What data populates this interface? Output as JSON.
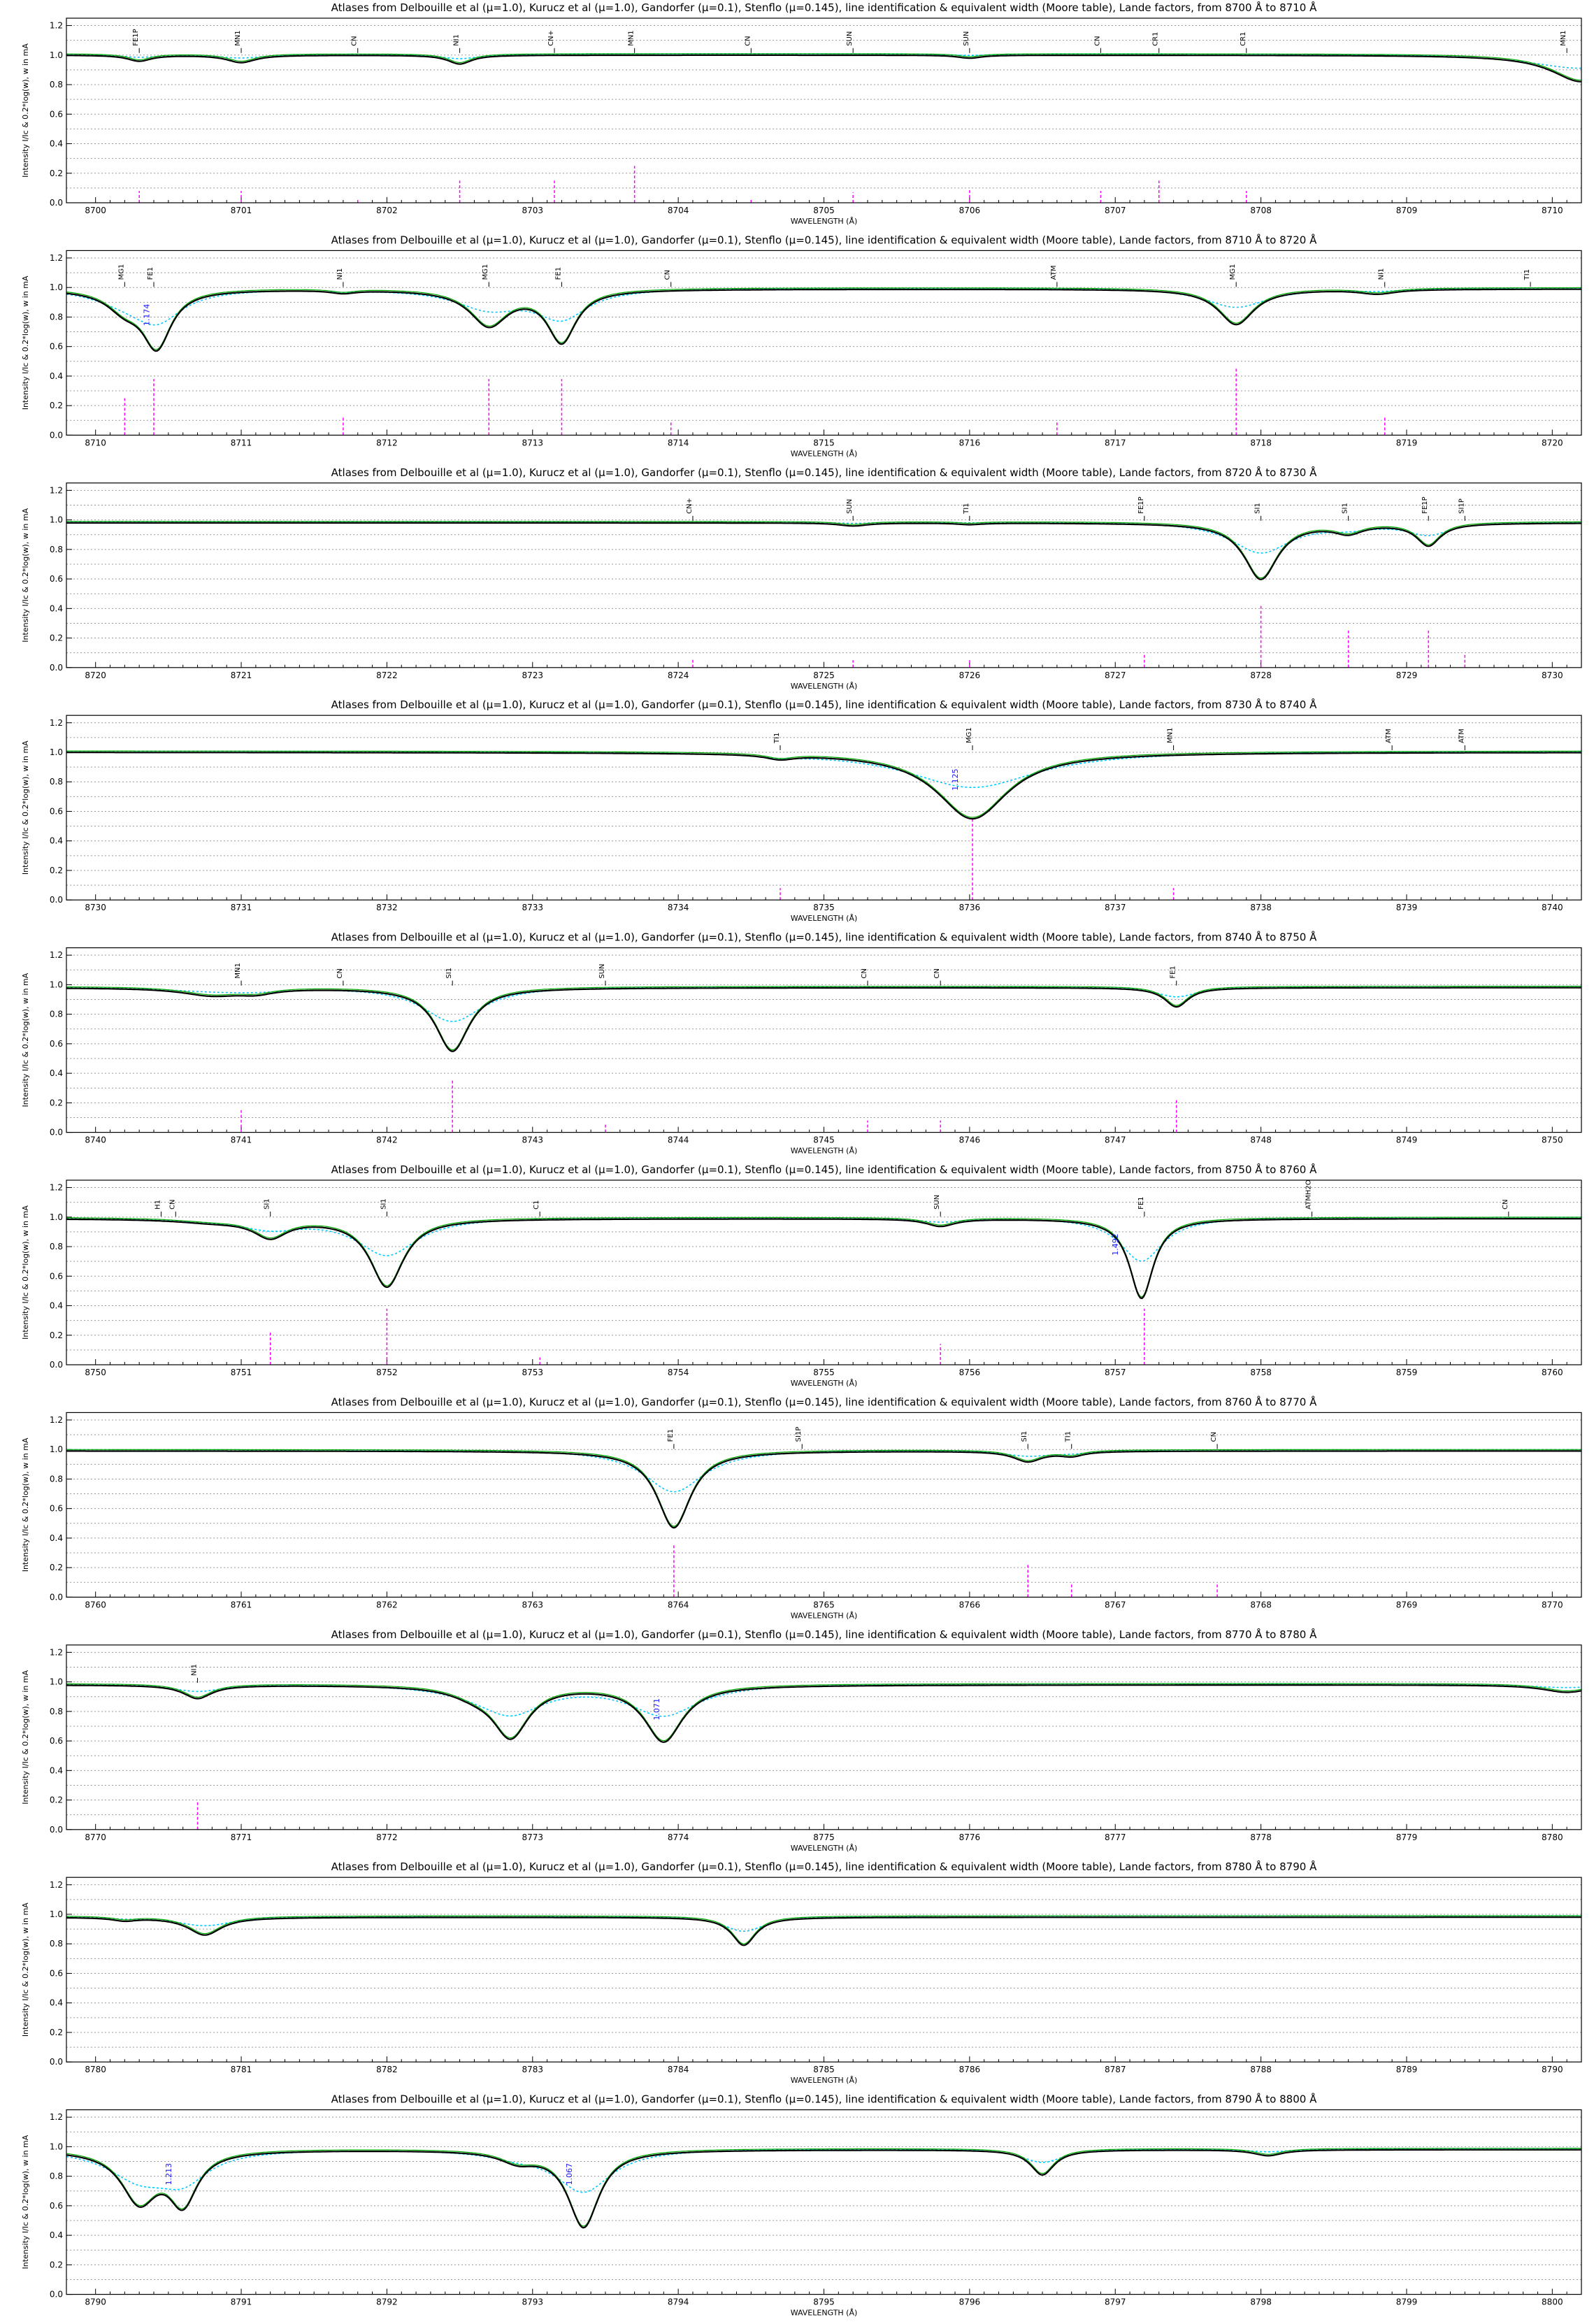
{
  "title_template": "Atlases from Delbouille et al (μ=1.0), Kurucz et al (μ=1.0), Gandorfer (μ=0.1), Stenflo (μ=0.145), line identification & equivalent width (Moore table), Lande factors, from {a} Å to {b} Å",
  "ylabel": "Intensity I/Ic & 0.2*log(w), w in mA",
  "xlabel": "WAVELENGTH (Å)",
  "colors": {
    "delbouille": "#000000",
    "kurucz": "#00aa00",
    "gandorfer": "#00c8ff",
    "stenflo": "#00c8ff",
    "moore_w": "#ff00ff",
    "lande": "#1a1aff",
    "grid": "#999999"
  },
  "chart_data": [
    {
      "type": "line",
      "title": "Atlases from Delbouille et al (μ=1.0), Kurucz et al (μ=1.0), Gandorfer (μ=0.1), Stenflo (μ=0.145), line identification & equivalent width (Moore table), Lande factors, from 8700 Å to 8710 Å",
      "xlim": [
        8699.8,
        8710.2
      ],
      "ylim": [
        0,
        1.25
      ],
      "yticks": [
        0.0,
        0.2,
        0.4,
        0.6,
        0.8,
        1.0,
        1.2
      ],
      "xticks": [
        8700,
        8701,
        8702,
        8703,
        8704,
        8705,
        8706,
        8707,
        8708,
        8709,
        8710
      ],
      "cont": 1.0,
      "lines": [
        {
          "x": 8700.3,
          "d": 0.04,
          "w": 0.1
        },
        {
          "x": 8701.0,
          "d": 0.05,
          "w": 0.12
        },
        {
          "x": 8702.5,
          "d": 0.06,
          "w": 0.1
        },
        {
          "x": 8706.0,
          "d": 0.02,
          "w": 0.1
        },
        {
          "x": 8710.2,
          "d": 0.18,
          "w": 0.25
        }
      ],
      "ids": [
        {
          "x": 8700.3,
          "t": "FE1P"
        },
        {
          "x": 8701.0,
          "t": "MN1"
        },
        {
          "x": 8701.8,
          "t": "CN"
        },
        {
          "x": 8702.5,
          "t": "NI1"
        },
        {
          "x": 8703.15,
          "t": "CN+"
        },
        {
          "x": 8703.7,
          "t": "MN1"
        },
        {
          "x": 8704.5,
          "t": "CN"
        },
        {
          "x": 8705.2,
          "t": "SUN"
        },
        {
          "x": 8706.0,
          "t": "SUN"
        },
        {
          "x": 8706.9,
          "t": "CN"
        },
        {
          "x": 8707.3,
          "t": "CR1"
        },
        {
          "x": 8707.9,
          "t": "CR1"
        },
        {
          "x": 8710.1,
          "t": "MN1"
        }
      ],
      "w": [
        {
          "x": 8700.3,
          "h": 0.08
        },
        {
          "x": 8701.0,
          "h": 0.08
        },
        {
          "x": 8701.8,
          "h": 0.02
        },
        {
          "x": 8702.5,
          "h": 0.15
        },
        {
          "x": 8703.15,
          "h": 0.15
        },
        {
          "x": 8703.7,
          "h": 0.25
        },
        {
          "x": 8704.5,
          "h": 0.02
        },
        {
          "x": 8705.2,
          "h": 0.07
        },
        {
          "x": 8706.0,
          "h": 0.1
        },
        {
          "x": 8706.9,
          "h": 0.08
        },
        {
          "x": 8707.3,
          "h": 0.15
        },
        {
          "x": 8707.9,
          "h": 0.08
        }
      ],
      "lande": []
    },
    {
      "type": "line",
      "title": "Atlases from Delbouille et al (μ=1.0), Kurucz et al (μ=1.0), Gandorfer (μ=0.1), Stenflo (μ=0.145), line identification & equivalent width (Moore table), Lande factors, from 8710 Å to 8720 Å",
      "xlim": [
        8709.8,
        8720.2
      ],
      "ylim": [
        0,
        1.25
      ],
      "yticks": [
        0.0,
        0.2,
        0.4,
        0.6,
        0.8,
        1.0,
        1.2
      ],
      "xticks": [
        8710,
        8711,
        8712,
        8713,
        8714,
        8715,
        8716,
        8717,
        8718,
        8719,
        8720
      ],
      "cont": 0.99,
      "lines": [
        {
          "x": 8710.2,
          "d": 0.12,
          "w": 0.15
        },
        {
          "x": 8710.42,
          "d": 0.38,
          "w": 0.12
        },
        {
          "x": 8712.7,
          "d": 0.24,
          "w": 0.16
        },
        {
          "x": 8713.2,
          "d": 0.35,
          "w": 0.12
        },
        {
          "x": 8717.83,
          "d": 0.24,
          "w": 0.15
        },
        {
          "x": 8711.7,
          "d": 0.02,
          "w": 0.1
        },
        {
          "x": 8718.8,
          "d": 0.03,
          "w": 0.15
        }
      ],
      "ids": [
        {
          "x": 8710.2,
          "t": "MG1"
        },
        {
          "x": 8710.4,
          "t": "FE1"
        },
        {
          "x": 8711.7,
          "t": "NI1"
        },
        {
          "x": 8712.7,
          "t": "MG1"
        },
        {
          "x": 8713.2,
          "t": "FE1"
        },
        {
          "x": 8713.95,
          "t": "CN"
        },
        {
          "x": 8716.6,
          "t": "ATM"
        },
        {
          "x": 8717.83,
          "t": "MG1"
        },
        {
          "x": 8718.85,
          "t": "NI1"
        },
        {
          "x": 8719.85,
          "t": "TI1"
        }
      ],
      "w": [
        {
          "x": 8710.2,
          "h": 0.25
        },
        {
          "x": 8710.4,
          "h": 0.38
        },
        {
          "x": 8711.7,
          "h": 0.12
        },
        {
          "x": 8712.7,
          "h": 0.38
        },
        {
          "x": 8713.2,
          "h": 0.38
        },
        {
          "x": 8713.95,
          "h": 0.1
        },
        {
          "x": 8716.6,
          "h": 0.1
        },
        {
          "x": 8717.83,
          "h": 0.45
        },
        {
          "x": 8718.85,
          "h": 0.12
        }
      ],
      "lande": [
        {
          "x": 8710.35,
          "t": "1.174"
        }
      ]
    },
    {
      "type": "line",
      "title": "Atlases from Delbouille et al (μ=1.0), Kurucz et al (μ=1.0), Gandorfer (μ=0.1), Stenflo (μ=0.145), line identification & equivalent width (Moore table), Lande factors, from 8720 Å to 8730 Å",
      "xlim": [
        8719.8,
        8730.2
      ],
      "ylim": [
        0,
        1.25
      ],
      "yticks": [
        0.0,
        0.2,
        0.4,
        0.6,
        0.8,
        1.0,
        1.2
      ],
      "xticks": [
        8720,
        8721,
        8722,
        8723,
        8724,
        8725,
        8726,
        8727,
        8728,
        8729,
        8730
      ],
      "cont": 0.98,
      "lines": [
        {
          "x": 8728.0,
          "d": 0.38,
          "w": 0.14
        },
        {
          "x": 8728.6,
          "d": 0.06,
          "w": 0.12
        },
        {
          "x": 8729.15,
          "d": 0.15,
          "w": 0.1
        },
        {
          "x": 8725.2,
          "d": 0.02,
          "w": 0.12
        },
        {
          "x": 8726.0,
          "d": 0.01,
          "w": 0.1
        }
      ],
      "ids": [
        {
          "x": 8724.1,
          "t": "CN+"
        },
        {
          "x": 8725.2,
          "t": "SUN"
        },
        {
          "x": 8726.0,
          "t": "TI1"
        },
        {
          "x": 8727.2,
          "t": "FE1P"
        },
        {
          "x": 8728.0,
          "t": "SI1"
        },
        {
          "x": 8728.6,
          "t": "SI1"
        },
        {
          "x": 8729.15,
          "t": "FE1P"
        },
        {
          "x": 8729.4,
          "t": "SI1P"
        }
      ],
      "w": [
        {
          "x": 8724.1,
          "h": 0.06
        },
        {
          "x": 8725.2,
          "h": 0.05
        },
        {
          "x": 8726.0,
          "h": 0.05
        },
        {
          "x": 8727.2,
          "h": 0.1
        },
        {
          "x": 8728.0,
          "h": 0.42
        },
        {
          "x": 8728.6,
          "h": 0.25
        },
        {
          "x": 8729.15,
          "h": 0.25
        },
        {
          "x": 8729.4,
          "h": 0.1
        }
      ],
      "lande": []
    },
    {
      "type": "line",
      "title": "Atlases from Delbouille et al (μ=1.0), Kurucz et al (μ=1.0), Gandorfer (μ=0.1), Stenflo (μ=0.145), line identification & equivalent width (Moore table), Lande factors, from 8730 Å to 8740 Å",
      "xlim": [
        8729.8,
        8740.2
      ],
      "ylim": [
        0,
        1.25
      ],
      "yticks": [
        0.0,
        0.2,
        0.4,
        0.6,
        0.8,
        1.0,
        1.2
      ],
      "xticks": [
        8730,
        8731,
        8732,
        8733,
        8734,
        8735,
        8736,
        8737,
        8738,
        8739,
        8740
      ],
      "cont": 1.0,
      "lines": [
        {
          "x": 8736.02,
          "d": 0.45,
          "w": 0.3
        },
        {
          "x": 8734.7,
          "d": 0.03,
          "w": 0.12
        }
      ],
      "ids": [
        {
          "x": 8734.7,
          "t": "TI1"
        },
        {
          "x": 8736.02,
          "t": "MG1"
        },
        {
          "x": 8737.4,
          "t": "MN1"
        },
        {
          "x": 8738.9,
          "t": "ATM"
        },
        {
          "x": 8739.4,
          "t": "ATM"
        }
      ],
      "w": [
        {
          "x": 8734.7,
          "h": 0.08
        },
        {
          "x": 8736.02,
          "h": 0.55
        },
        {
          "x": 8737.4,
          "h": 0.08
        }
      ],
      "lande": [
        {
          "x": 8735.9,
          "t": "1.125"
        }
      ]
    },
    {
      "type": "line",
      "title": "Atlases from Delbouille et al (μ=1.0), Kurucz et al (μ=1.0), Gandorfer (μ=0.1), Stenflo (μ=0.145), line identification & equivalent width (Moore table), Lande factors, from 8740 Å to 8750 Å",
      "xlim": [
        8739.8,
        8750.2
      ],
      "ylim": [
        0,
        1.25
      ],
      "yticks": [
        0.0,
        0.2,
        0.4,
        0.6,
        0.8,
        1.0,
        1.2
      ],
      "xticks": [
        8740,
        8741,
        8742,
        8743,
        8744,
        8745,
        8746,
        8747,
        8748,
        8749,
        8750
      ],
      "cont": 0.98,
      "lines": [
        {
          "x": 8742.45,
          "d": 0.43,
          "w": 0.14
        },
        {
          "x": 8747.42,
          "d": 0.13,
          "w": 0.1
        },
        {
          "x": 8740.8,
          "d": 0.05,
          "w": 0.25
        },
        {
          "x": 8741.1,
          "d": 0.03,
          "w": 0.15
        }
      ],
      "ids": [
        {
          "x": 8741.0,
          "t": "MN1"
        },
        {
          "x": 8741.7,
          "t": "CN"
        },
        {
          "x": 8742.45,
          "t": "SI1"
        },
        {
          "x": 8743.5,
          "t": "SUN"
        },
        {
          "x": 8745.3,
          "t": "CN"
        },
        {
          "x": 8745.8,
          "t": "CN"
        },
        {
          "x": 8747.42,
          "t": "FE1"
        }
      ],
      "w": [
        {
          "x": 8741.0,
          "h": 0.15
        },
        {
          "x": 8742.45,
          "h": 0.35
        },
        {
          "x": 8743.5,
          "h": 0.06
        },
        {
          "x": 8745.3,
          "h": 0.08
        },
        {
          "x": 8745.8,
          "h": 0.08
        },
        {
          "x": 8747.42,
          "h": 0.22
        }
      ],
      "lande": []
    },
    {
      "type": "line",
      "title": "Atlases from Delbouille et al (μ=1.0), Kurucz et al (μ=1.0), Gandorfer (μ=0.1), Stenflo (μ=0.145), line identification & equivalent width (Moore table), Lande factors, from 8750 Å to 8760 Å",
      "xlim": [
        8749.8,
        8760.2
      ],
      "ylim": [
        0,
        1.25
      ],
      "yticks": [
        0.0,
        0.2,
        0.4,
        0.6,
        0.8,
        1.0,
        1.2
      ],
      "xticks": [
        8750,
        8751,
        8752,
        8753,
        8754,
        8755,
        8756,
        8757,
        8758,
        8759,
        8760
      ],
      "cont": 0.99,
      "lines": [
        {
          "x": 8751.2,
          "d": 0.12,
          "w": 0.14
        },
        {
          "x": 8752.0,
          "d": 0.46,
          "w": 0.14
        },
        {
          "x": 8757.18,
          "d": 0.54,
          "w": 0.1
        },
        {
          "x": 8755.8,
          "d": 0.05,
          "w": 0.12
        },
        {
          "x": 8750.8,
          "d": 0.02,
          "w": 0.3
        }
      ],
      "ids": [
        {
          "x": 8750.45,
          "t": "H1"
        },
        {
          "x": 8750.55,
          "t": "CN"
        },
        {
          "x": 8751.2,
          "t": "SI1"
        },
        {
          "x": 8752.0,
          "t": "SI1"
        },
        {
          "x": 8753.05,
          "t": "C1"
        },
        {
          "x": 8755.8,
          "t": "SUN"
        },
        {
          "x": 8757.2,
          "t": "FE1"
        },
        {
          "x": 8758.35,
          "t": "ATMH2O"
        },
        {
          "x": 8759.7,
          "t": "CN"
        }
      ],
      "w": [
        {
          "x": 8751.2,
          "h": 0.22
        },
        {
          "x": 8752.0,
          "h": 0.38
        },
        {
          "x": 8753.05,
          "h": 0.05
        },
        {
          "x": 8755.8,
          "h": 0.14
        },
        {
          "x": 8757.2,
          "h": 0.38
        }
      ],
      "lande": [
        {
          "x": 8757.0,
          "t": "1.492"
        }
      ]
    },
    {
      "type": "line",
      "title": "Atlases from Delbouille et al (μ=1.0), Kurucz et al (μ=1.0), Gandorfer (μ=0.1), Stenflo (μ=0.145), line identification & equivalent width (Moore table), Lande factors, from 8760 Å to 8770 Å",
      "xlim": [
        8759.8,
        8770.2
      ],
      "ylim": [
        0,
        1.25
      ],
      "yticks": [
        0.0,
        0.2,
        0.4,
        0.6,
        0.8,
        1.0,
        1.2
      ],
      "xticks": [
        8760,
        8761,
        8762,
        8763,
        8764,
        8765,
        8766,
        8767,
        8768,
        8769,
        8770
      ],
      "cont": 0.99,
      "lines": [
        {
          "x": 8763.97,
          "d": 0.52,
          "w": 0.14
        },
        {
          "x": 8766.4,
          "d": 0.07,
          "w": 0.12
        },
        {
          "x": 8766.7,
          "d": 0.03,
          "w": 0.1
        }
      ],
      "ids": [
        {
          "x": 8763.97,
          "t": "FE1"
        },
        {
          "x": 8764.85,
          "t": "SI1P"
        },
        {
          "x": 8766.4,
          "t": "SI1"
        },
        {
          "x": 8766.7,
          "t": "TI1"
        },
        {
          "x": 8767.7,
          "t": "CN"
        }
      ],
      "w": [
        {
          "x": 8763.97,
          "h": 0.36
        },
        {
          "x": 8766.4,
          "h": 0.22
        },
        {
          "x": 8766.7,
          "h": 0.1
        },
        {
          "x": 8767.7,
          "h": 0.1
        }
      ],
      "lande": []
    },
    {
      "type": "line",
      "title": "Atlases from Delbouille et al (μ=1.0), Kurucz et al (μ=1.0), Gandorfer (μ=0.1), Stenflo (μ=0.145), line identification & equivalent width (Moore table), Lande factors, from 8770 Å to 8780 Å",
      "xlim": [
        8769.8,
        8780.2
      ],
      "ylim": [
        0,
        1.25
      ],
      "yticks": [
        0.0,
        0.2,
        0.4,
        0.6,
        0.8,
        1.0,
        1.2
      ],
      "xticks": [
        8770,
        8771,
        8772,
        8773,
        8774,
        8775,
        8776,
        8777,
        8778,
        8779,
        8780
      ],
      "cont": 0.98,
      "lines": [
        {
          "x": 8770.7,
          "d": 0.09,
          "w": 0.12
        },
        {
          "x": 8772.85,
          "d": 0.34,
          "w": 0.15
        },
        {
          "x": 8772.6,
          "d": 0.05,
          "w": 0.2
        },
        {
          "x": 8773.9,
          "d": 0.38,
          "w": 0.16
        },
        {
          "x": 8780.1,
          "d": 0.05,
          "w": 0.2
        }
      ],
      "ids": [
        {
          "x": 8770.7,
          "t": "NI1"
        }
      ],
      "w": [
        {
          "x": 8770.7,
          "h": 0.2
        }
      ],
      "lande": [
        {
          "x": 8773.85,
          "t": "1.071"
        }
      ]
    },
    {
      "type": "line",
      "title": "Atlases from Delbouille et al (μ=1.0), Kurucz et al (μ=1.0), Gandorfer (μ=0.1), Stenflo (μ=0.145), line identification & equivalent width (Moore table), Lande factors, from 8780 Å to 8790 Å",
      "xlim": [
        8779.8,
        8790.2
      ],
      "ylim": [
        0,
        1.25
      ],
      "yticks": [
        0.0,
        0.2,
        0.4,
        0.6,
        0.8,
        1.0,
        1.2
      ],
      "xticks": [
        8780,
        8781,
        8782,
        8783,
        8784,
        8785,
        8786,
        8787,
        8788,
        8789,
        8790
      ],
      "cont": 0.98,
      "lines": [
        {
          "x": 8780.75,
          "d": 0.12,
          "w": 0.14
        },
        {
          "x": 8784.45,
          "d": 0.19,
          "w": 0.1
        },
        {
          "x": 8780.2,
          "d": 0.02,
          "w": 0.1
        }
      ],
      "ids": [],
      "w": [],
      "lande": []
    },
    {
      "type": "line",
      "title": "Atlases from Delbouille et al (μ=1.0), Kurucz et al (μ=1.0), Gandorfer (μ=0.1), Stenflo (μ=0.145), line identification & equivalent width (Moore table), Lande factors, from 8790 Å to 8800 Å",
      "xlim": [
        8789.8,
        8800.2
      ],
      "ylim": [
        0,
        1.25
      ],
      "yticks": [
        0.0,
        0.2,
        0.4,
        0.6,
        0.8,
        1.0,
        1.2
      ],
      "xticks": [
        8790,
        8791,
        8792,
        8793,
        8794,
        8795,
        8796,
        8797,
        8798,
        8799,
        8800
      ],
      "cont": 0.98,
      "lines": [
        {
          "x": 8790.3,
          "d": 0.34,
          "w": 0.15
        },
        {
          "x": 8790.6,
          "d": 0.34,
          "w": 0.12
        },
        {
          "x": 8793.35,
          "d": 0.52,
          "w": 0.13
        },
        {
          "x": 8792.9,
          "d": 0.07,
          "w": 0.15
        },
        {
          "x": 8796.5,
          "d": 0.17,
          "w": 0.1
        },
        {
          "x": 8798.05,
          "d": 0.04,
          "w": 0.12
        }
      ],
      "ids": [],
      "w": [],
      "lande": [
        {
          "x": 8790.5,
          "t": "1.213"
        },
        {
          "x": 8793.25,
          "t": "1.067"
        }
      ]
    }
  ]
}
